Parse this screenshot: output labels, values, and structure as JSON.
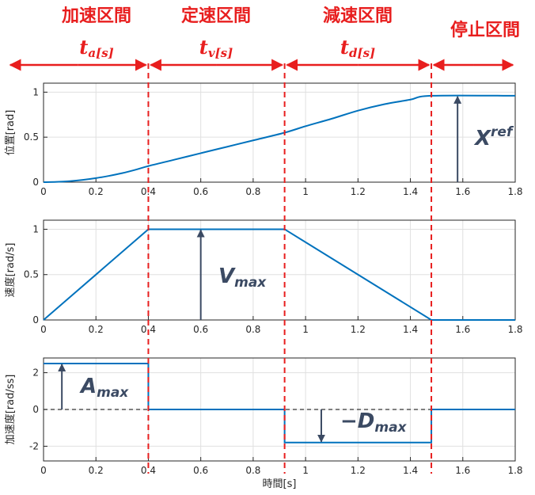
{
  "phases": [
    {
      "title": "加速区間",
      "sym": "t",
      "sub": "a",
      "unit": "[s]"
    },
    {
      "title": "定速区間",
      "sym": "t",
      "sub": "v",
      "unit": "[s]"
    },
    {
      "title": "減速区間",
      "sym": "t",
      "sub": "d",
      "unit": "[s]"
    },
    {
      "title": "停止区間",
      "sym": "",
      "sub": "",
      "unit": ""
    }
  ],
  "boundaries": [
    0.4,
    0.92,
    1.48
  ],
  "annotations": {
    "xref": {
      "base": "X",
      "sup": "ref"
    },
    "vmax": {
      "base": "V",
      "sub": "max"
    },
    "amax": {
      "base": "A",
      "sub": "max"
    },
    "dmax": {
      "base": "−D",
      "sub": "max"
    }
  },
  "colors": {
    "line": "#0072bd",
    "boundary": "#e81e1e",
    "annotation": "#3b4a63"
  },
  "chart_data": [
    {
      "type": "line",
      "ylabel": "位置[rad]",
      "xlim": [
        0,
        1.8
      ],
      "ylim": [
        0,
        1.1
      ],
      "xticks": [
        0,
        0.2,
        0.4,
        0.6,
        0.8,
        1,
        1.2,
        1.4,
        1.6,
        1.8
      ],
      "xtick_labels": [
        "0",
        "0.2",
        "0.4",
        "0.6",
        "0.8",
        "1",
        "1.2",
        "1.4",
        "1.6",
        "1.8"
      ],
      "yticks": [
        0,
        0.5,
        1
      ],
      "ytick_labels": [
        "0",
        "0.5",
        "1"
      ],
      "grid": true,
      "series": [
        {
          "x": [
            0,
            0.05,
            0.1,
            0.15,
            0.2,
            0.25,
            0.3,
            0.35,
            0.4,
            0.5,
            0.6,
            0.7,
            0.8,
            0.92,
            1.0,
            1.1,
            1.2,
            1.3,
            1.4,
            1.48,
            1.8
          ],
          "values": [
            0,
            0.003,
            0.011,
            0.025,
            0.045,
            0.07,
            0.1,
            0.137,
            0.179,
            0.25,
            0.322,
            0.393,
            0.464,
            0.55,
            0.622,
            0.705,
            0.795,
            0.866,
            0.917,
            0.96,
            0.96
          ]
        }
      ]
    },
    {
      "type": "line",
      "ylabel": "速度[rad/s]",
      "xlim": [
        0,
        1.8
      ],
      "ylim": [
        0,
        1.1
      ],
      "xticks": [
        0,
        0.2,
        0.4,
        0.6,
        0.8,
        1,
        1.2,
        1.4,
        1.6,
        1.8
      ],
      "xtick_labels": [
        "0",
        "0.2",
        "0.4",
        "0.6",
        "0.8",
        "1",
        "1.2",
        "1.4",
        "1.6",
        "1.8"
      ],
      "yticks": [
        0,
        0.5,
        1
      ],
      "ytick_labels": [
        "0",
        "0.5",
        "1"
      ],
      "grid": true,
      "series": [
        {
          "x": [
            0,
            0.4,
            0.92,
            1.48,
            1.8
          ],
          "values": [
            0,
            1,
            1,
            0,
            0
          ]
        }
      ]
    },
    {
      "type": "line",
      "ylabel": "加速度[rad/ss]",
      "xlabel": "時間[s]",
      "xlim": [
        0,
        1.8
      ],
      "ylim": [
        -2.8,
        2.8
      ],
      "xticks": [
        0,
        0.2,
        0.4,
        0.6,
        0.8,
        1,
        1.2,
        1.4,
        1.6,
        1.8
      ],
      "xtick_labels": [
        "0",
        "0.2",
        "0.4",
        "0.6",
        "0.8",
        "1",
        "1.2",
        "1.4",
        "1.6",
        "1.8"
      ],
      "yticks": [
        -2,
        0,
        2
      ],
      "ytick_labels": [
        "-2",
        "0",
        "2"
      ],
      "grid": true,
      "series": [
        {
          "x": [
            0,
            0.4,
            0.4,
            0.92,
            0.92,
            1.48,
            1.48,
            1.8
          ],
          "values": [
            2.5,
            2.5,
            0,
            0,
            -1.8,
            -1.8,
            0,
            0
          ]
        }
      ]
    }
  ]
}
